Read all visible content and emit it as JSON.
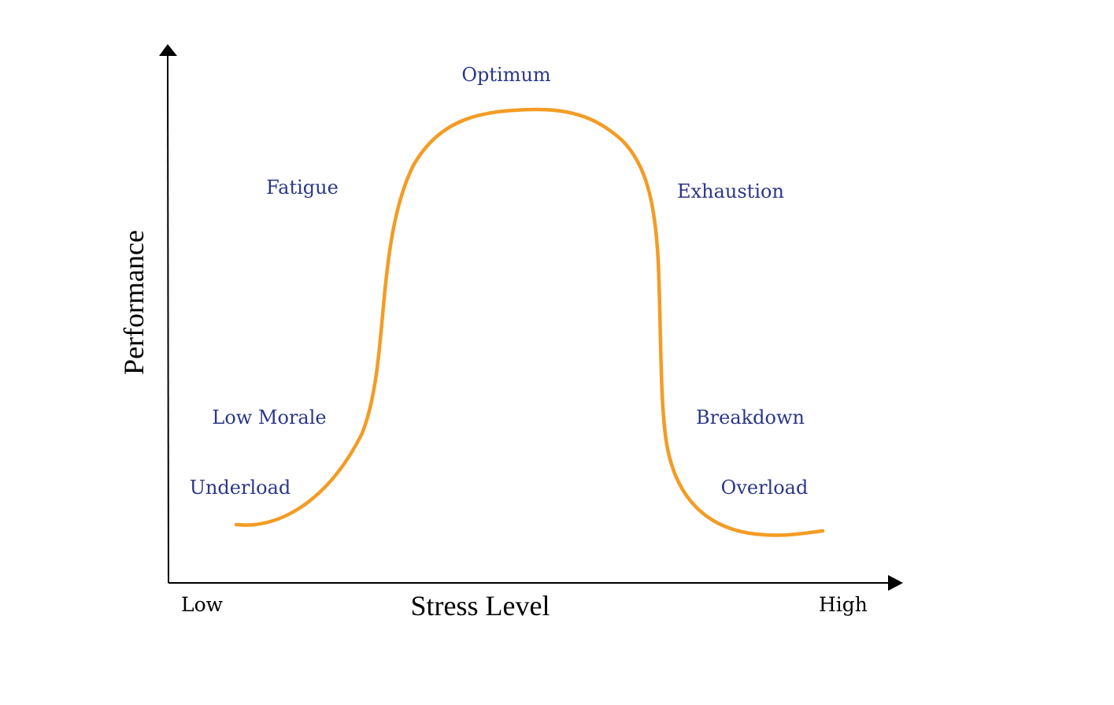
{
  "colors": {
    "curve": "#f39c24",
    "zone_label": "#2b3788",
    "axis": "#000000",
    "background": "#ffffff"
  },
  "axes": {
    "x_title": "Stress Level",
    "y_title": "Performance",
    "x_low": "Low",
    "x_high": "High"
  },
  "zones": {
    "optimum": "Optimum",
    "fatigue": "Fatigue",
    "exhaustion": "Exhaustion",
    "low_morale": "Low Morale",
    "breakdown": "Breakdown",
    "underload": "Underload",
    "overload": "Overload"
  }
}
